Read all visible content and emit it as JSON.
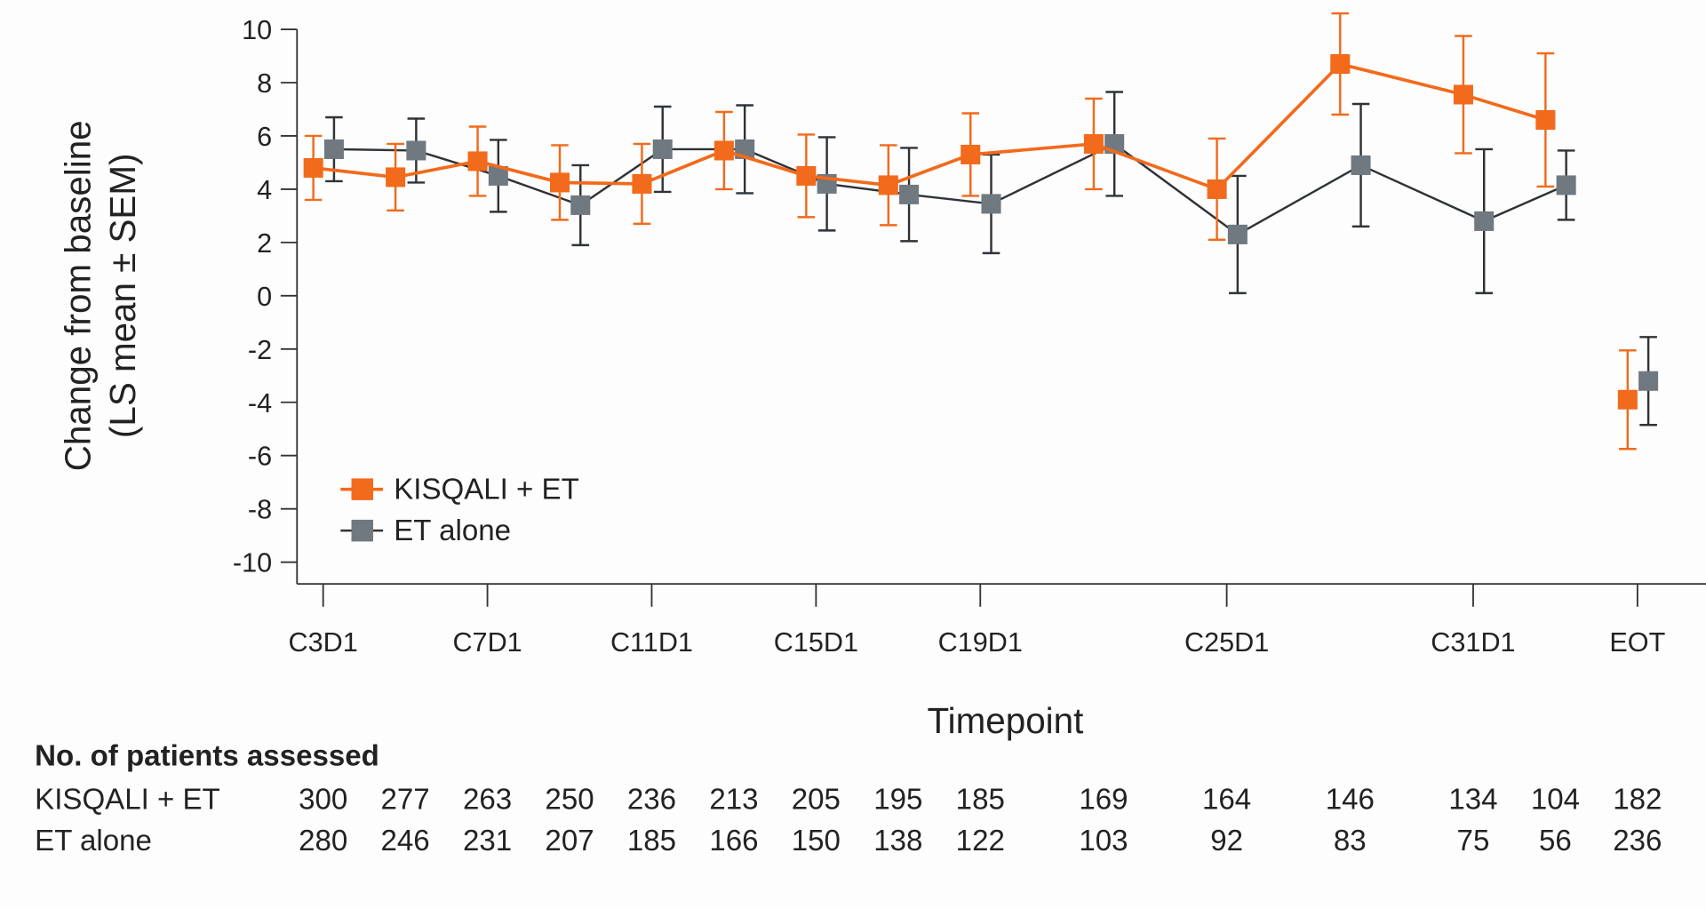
{
  "chart_data": {
    "type": "line",
    "title": "",
    "xlabel": "Timepoint",
    "ylabel_line1": "Change from baseline",
    "ylabel_line2": "(LS mean ± SEM)",
    "ylim": [
      -10,
      10
    ],
    "yticks": [
      10,
      8,
      6,
      4,
      2,
      0,
      -2,
      -4,
      -6,
      -8,
      -10
    ],
    "grid": false,
    "legend_position": "bottom-left",
    "categories": [
      "C3D1",
      "",
      "C7D1",
      "",
      "C11D1",
      "",
      "C15D1",
      "",
      "C19D1",
      "",
      "C25D1",
      "",
      "C31D1",
      "",
      "EOT"
    ],
    "error_bars": "SEM",
    "series": [
      {
        "name": "KISQALI + ET",
        "color": "#f26a1b",
        "marker": "square",
        "values": [
          4.8,
          4.45,
          5.05,
          4.25,
          4.2,
          5.45,
          4.5,
          4.15,
          5.3,
          5.7,
          4.0,
          8.7,
          7.55,
          6.6,
          -3.9
        ],
        "sem": [
          1.2,
          1.25,
          1.3,
          1.4,
          1.5,
          1.45,
          1.55,
          1.5,
          1.55,
          1.7,
          1.9,
          1.9,
          2.2,
          2.5,
          1.85
        ],
        "connect_last": false
      },
      {
        "name": "ET alone",
        "color": "#707880",
        "marker": "square",
        "values": [
          5.5,
          5.45,
          4.5,
          3.4,
          5.5,
          5.5,
          4.2,
          3.8,
          3.45,
          5.7,
          2.3,
          4.9,
          2.8,
          4.15,
          -3.2
        ],
        "sem": [
          1.2,
          1.2,
          1.35,
          1.5,
          1.6,
          1.65,
          1.75,
          1.75,
          1.85,
          1.95,
          2.2,
          2.3,
          2.7,
          1.3,
          1.65
        ],
        "connect_last": false
      }
    ]
  },
  "patients_table": {
    "title": "No. of patients assessed",
    "rows": [
      {
        "label": "KISQALI + ET",
        "counts": [
          "300",
          "277",
          "263",
          "250",
          "236",
          "213",
          "205",
          "195",
          "185",
          "169",
          "164",
          "146",
          "134",
          "104",
          "182"
        ]
      },
      {
        "label": "ET alone",
        "counts": [
          "280",
          "246",
          "231",
          "207",
          "185",
          "166",
          "150",
          "138",
          "122",
          "103",
          "92",
          "83",
          "75",
          "56",
          "236"
        ]
      }
    ]
  }
}
